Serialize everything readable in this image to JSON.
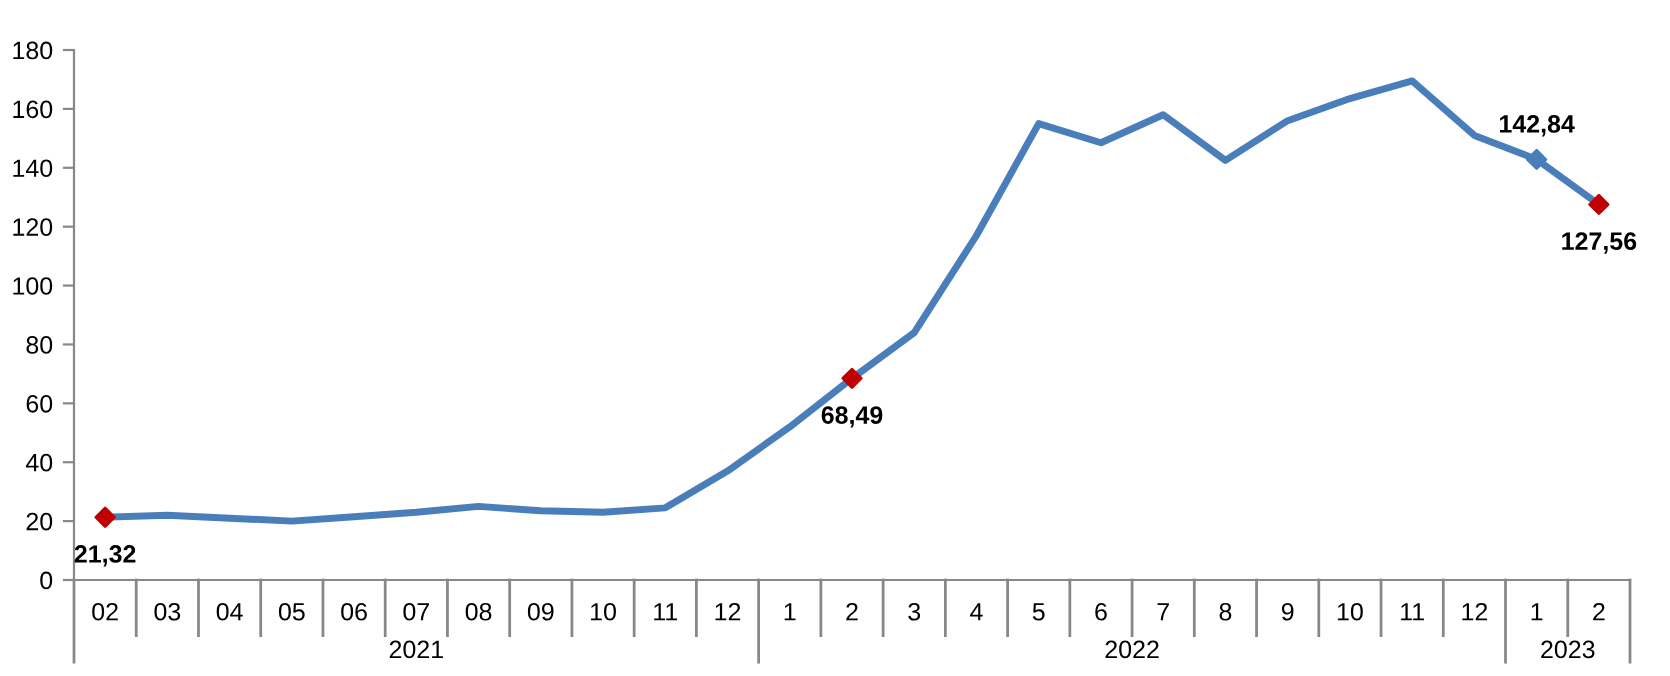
{
  "chart_data": {
    "type": "line",
    "categories": [
      "02",
      "03",
      "04",
      "05",
      "06",
      "07",
      "08",
      "09",
      "10",
      "11",
      "12",
      "1",
      "2",
      "3",
      "4",
      "5",
      "6",
      "7",
      "8",
      "9",
      "10",
      "11",
      "12",
      "1",
      "2"
    ],
    "series": [
      {
        "color": "#4a7ebb",
        "values": [
          21.32,
          22,
          21,
          20,
          21.5,
          23,
          25,
          23.5,
          23,
          24.5,
          37,
          52,
          68.49,
          84,
          117,
          155,
          148.5,
          158,
          142.5,
          156,
          163.5,
          169.5,
          151,
          142.84,
          127.56
        ],
        "value_labels": [
          "21,32",
          null,
          null,
          null,
          null,
          null,
          null,
          null,
          null,
          null,
          null,
          null,
          "68,49",
          null,
          null,
          null,
          null,
          null,
          null,
          null,
          null,
          null,
          null,
          "142,84",
          "127,56"
        ]
      },
      {
        "type": "scatter",
        "marker": "diamond",
        "values": [
          21.32,
          null,
          null,
          null,
          null,
          null,
          null,
          null,
          null,
          null,
          null,
          null,
          68.49,
          null,
          null,
          null,
          null,
          null,
          null,
          null,
          null,
          null,
          null,
          142.84,
          127.56
        ],
        "colors": [
          "#c00000",
          null,
          null,
          null,
          null,
          null,
          null,
          null,
          null,
          null,
          null,
          null,
          "#c00000",
          null,
          null,
          null,
          null,
          null,
          null,
          null,
          null,
          null,
          null,
          "#4a7ebb",
          "#c00000"
        ]
      }
    ],
    "annotations": [
      "2021",
      "2022",
      "2023"
    ],
    "ylim": [
      0,
      180
    ],
    "yticks": [
      0,
      20,
      40,
      60,
      80,
      100,
      120,
      140,
      160,
      180
    ],
    "grid": false,
    "legend": false
  }
}
